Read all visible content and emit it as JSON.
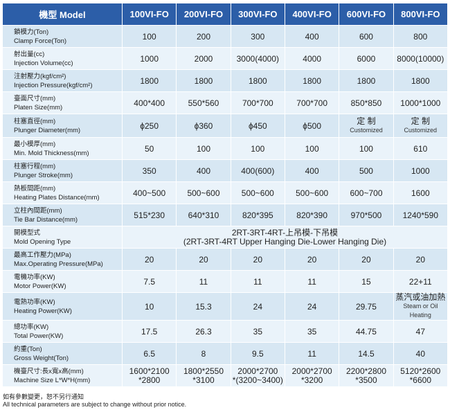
{
  "header": {
    "model_label": "機型 Model",
    "models": [
      "100VI-FO",
      "200VI-FO",
      "300VI-FO",
      "400VI-FO",
      "600VI-FO",
      "800VI-FO"
    ]
  },
  "rows": [
    {
      "label_cn": "鎖模力(Ton)",
      "label_en": "Clamp Force(Ton)",
      "values": [
        "100",
        "200",
        "300",
        "400",
        "600",
        "800"
      ]
    },
    {
      "label_cn": "射出量(cc)",
      "label_en": "Injection Volume(cc)",
      "values": [
        "1000",
        "2000",
        "3000(4000)",
        "4000",
        "6000",
        "8000(10000)"
      ]
    },
    {
      "label_cn": "注射壓力(kgf/cm²)",
      "label_en": "Injection Pressure(kgf/cm²)",
      "values": [
        "1800",
        "1800",
        "1800",
        "1800",
        "1800",
        "1800"
      ]
    },
    {
      "label_cn": "臺面尺寸(mm)",
      "label_en": "Platen Size(mm)",
      "values": [
        "400*400",
        "550*560",
        "700*700",
        "700*700",
        "850*850",
        "1000*1000"
      ]
    },
    {
      "label_cn": "柱塞直徑(mm)",
      "label_en": "Plunger Diameter(mm)",
      "values": [
        "ϕ250",
        "ϕ360",
        "ϕ450",
        "ϕ500",
        "定 制\nCustomized",
        "定 制\nCustomized"
      ]
    },
    {
      "label_cn": "最小模厚(mm)",
      "label_en": "Min. Mold Thickness(mm)",
      "values": [
        "50",
        "100",
        "100",
        "100",
        "100",
        "610"
      ]
    },
    {
      "label_cn": "柱塞行程(mm)",
      "label_en": "Plunger Stroke(mm)",
      "values": [
        "350",
        "400",
        "400(600)",
        "400",
        "500",
        "1000"
      ]
    },
    {
      "label_cn": "熱板間距(mm)",
      "label_en": "Heating Plates Distance(mm)",
      "values": [
        "400~500",
        "500~600",
        "500~600",
        "500~600",
        "600~700",
        "1600"
      ]
    },
    {
      "label_cn": "立柱內間距(mm)",
      "label_en": "Tie Bar Distance(mm)",
      "values": [
        "515*230",
        "640*310",
        "820*395",
        "820*390",
        "970*500",
        "1240*590"
      ]
    },
    {
      "label_cn": "開模型式",
      "label_en": "Mold Opening Type",
      "merged": "2RT-3RT-4RT-上吊模-下吊模\n(2RT-3RT-4RT Upper Hanging Die-Lower Hanging Die)"
    },
    {
      "label_cn": "最高工作壓力(MPa)",
      "label_en": "Max.Operating Pressure(MPa)",
      "values": [
        "20",
        "20",
        "20",
        "20",
        "20",
        "20"
      ]
    },
    {
      "label_cn": "電機功率(KW)",
      "label_en": "Motor Power(KW)",
      "values": [
        "7.5",
        "11",
        "11",
        "11",
        "15",
        "22+11"
      ]
    },
    {
      "label_cn": "電熱功率(KW)",
      "label_en": "Heating Power(KW)",
      "values": [
        "10",
        "15.3",
        "24",
        "24",
        "29.75",
        "蒸汽或油加熱\nSteam or Oil Heating"
      ]
    },
    {
      "label_cn": "總功率(KW)",
      "label_en": "Total Power(KW)",
      "values": [
        "17.5",
        "26.3",
        "35",
        "35",
        "44.75",
        "47"
      ]
    },
    {
      "label_cn": "約重(Ton)",
      "label_en": "Gross Weight(Ton)",
      "values": [
        "6.5",
        "8",
        "9.5",
        "11",
        "14.5",
        "40"
      ]
    },
    {
      "label_cn": "機臺尺寸:長x寬x高(mm)",
      "label_en": "Machine Size L*W*H(mm)",
      "values": [
        "1600*2100\n*2800",
        "1800*2550\n*3100",
        "2000*2700\n*(3200~3400)",
        "2000*2700\n*3200",
        "2200*2800\n*3500",
        "5120*2600\n*6600"
      ]
    }
  ],
  "notes": {
    "cn": "如有參數變更，恕不另行通知",
    "en": "All technical parameters are subject to change without prior notice."
  }
}
